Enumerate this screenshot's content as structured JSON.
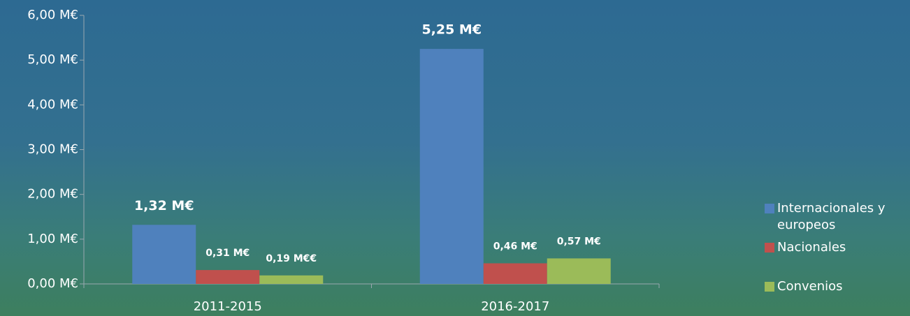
{
  "chart_data": {
    "type": "bar",
    "categories": [
      "2011-2015",
      "2016-2017"
    ],
    "series": [
      {
        "name": "Internacionales y europeos",
        "color": "#4f81bd",
        "values": [
          1.32,
          5.25
        ],
        "value_labels": [
          "1,32 M€",
          "5,25 M€"
        ]
      },
      {
        "name": "Nacionales",
        "color": "#c0504d",
        "values": [
          0.31,
          0.46
        ],
        "value_labels": [
          "0,31 M€",
          "0,46 M€"
        ]
      },
      {
        "name": "Convenios",
        "color": "#9bbb59",
        "values": [
          0.19,
          0.57
        ],
        "value_labels": [
          "0,19 M€€",
          "0,57 M€"
        ]
      }
    ],
    "ylim": [
      0,
      6
    ],
    "yticks": [
      {
        "value": 0,
        "label": "0,00 M€"
      },
      {
        "value": 1,
        "label": "1,00 M€"
      },
      {
        "value": 2,
        "label": "2,00 M€"
      },
      {
        "value": 3,
        "label": "3,00 M€"
      },
      {
        "value": 4,
        "label": "4,00 M€"
      },
      {
        "value": 5,
        "label": "5,00 M€"
      },
      {
        "value": 6,
        "label": "6,00 M€"
      }
    ],
    "legend": "right"
  }
}
